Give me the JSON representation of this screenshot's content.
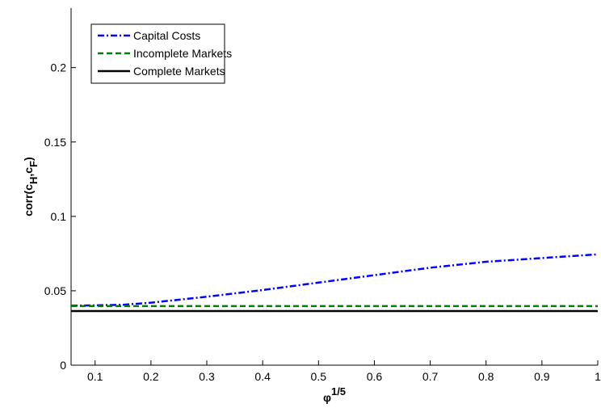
{
  "chart_data": {
    "type": "line",
    "xlabel": [
      "φ",
      "1/5"
    ],
    "ylabel": [
      "corr(c",
      "H",
      ",c",
      "F",
      ")"
    ],
    "x": [
      0.057,
      0.1,
      0.15,
      0.2,
      0.3,
      0.4,
      0.5,
      0.6,
      0.7,
      0.8,
      0.9,
      1.0
    ],
    "series": [
      {
        "name": "Capital Costs",
        "color": "#0000ff",
        "dash": "dashdot",
        "values": [
          0.04,
          0.0402,
          0.0406,
          0.042,
          0.046,
          0.0505,
          0.0555,
          0.0605,
          0.0655,
          0.0695,
          0.072,
          0.0745
        ]
      },
      {
        "name": "Incomplete Markets",
        "color": "#008000",
        "dash": "dashed",
        "values": [
          0.0397,
          0.0397,
          0.0397,
          0.0397,
          0.0397,
          0.0397,
          0.0397,
          0.0397,
          0.0397,
          0.0397,
          0.0397,
          0.0397
        ]
      },
      {
        "name": "Complete Markets",
        "color": "#000000",
        "dash": "solid",
        "values": [
          0.0364,
          0.0364,
          0.0364,
          0.0364,
          0.0364,
          0.0364,
          0.0364,
          0.0364,
          0.0364,
          0.0364,
          0.0364,
          0.0364
        ]
      }
    ],
    "xlim": [
      0.057,
      1.0
    ],
    "ylim": [
      0,
      0.24
    ],
    "xticks": [
      0.1,
      0.2,
      0.3,
      0.4,
      0.5,
      0.6,
      0.7,
      0.8,
      0.9,
      1
    ],
    "yticks": [
      0,
      0.05,
      0.1,
      0.15,
      0.2
    ],
    "legend": "upper left"
  }
}
